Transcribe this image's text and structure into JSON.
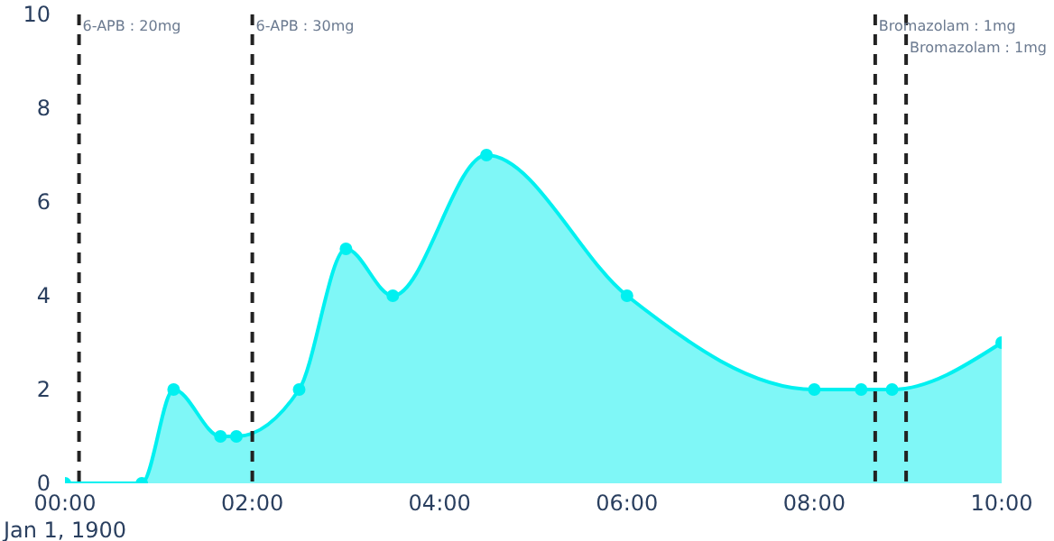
{
  "chart_data": {
    "type": "area",
    "x": [
      0,
      0.82,
      1.16,
      1.66,
      1.83,
      2.5,
      3.0,
      3.5,
      4.5,
      6.0,
      8.0,
      8.5,
      8.83,
      10
    ],
    "series": [
      {
        "color": "#00f0f0",
        "values": [
          0,
          0,
          2,
          1,
          1,
          2,
          5,
          4,
          7,
          4,
          2,
          2,
          2,
          3
        ]
      }
    ],
    "xlim": [
      0,
      10
    ],
    "xticks": [
      {
        "value": 0,
        "label": "00:00\nJan 1, 1900"
      },
      {
        "value": 2,
        "label": "02:00"
      },
      {
        "value": 4,
        "label": "04:00"
      },
      {
        "value": 6,
        "label": "06:00"
      },
      {
        "value": 8,
        "label": "08:00"
      },
      {
        "value": 10,
        "label": "10:00"
      }
    ],
    "ylim": [
      0,
      10
    ],
    "yticks": [
      0,
      2,
      4,
      6,
      8,
      10
    ],
    "grid": false,
    "marker": "circle",
    "ref_lines": [
      {
        "axis": "x",
        "value": 0.15,
        "color": "#222222",
        "line_style": "dashed"
      },
      {
        "axis": "x",
        "value": 2.0,
        "color": "#222222",
        "line_style": "dashed"
      },
      {
        "axis": "x",
        "value": 8.65,
        "color": "#222222",
        "line_style": "dashed"
      },
      {
        "axis": "x",
        "value": 8.98,
        "color": "#222222",
        "line_style": "dashed"
      }
    ],
    "annotations": [
      {
        "text": "6-APB : 20mg",
        "x": 0.15,
        "y": 10
      },
      {
        "text": "6-APB : 30mg",
        "x": 2.0,
        "y": 10
      },
      {
        "text": "Bromazolam : 1mg",
        "x": 8.65,
        "y": 10
      },
      {
        "text": "Bromazolam : 1mg",
        "x": 8.98,
        "y": 10
      }
    ]
  }
}
